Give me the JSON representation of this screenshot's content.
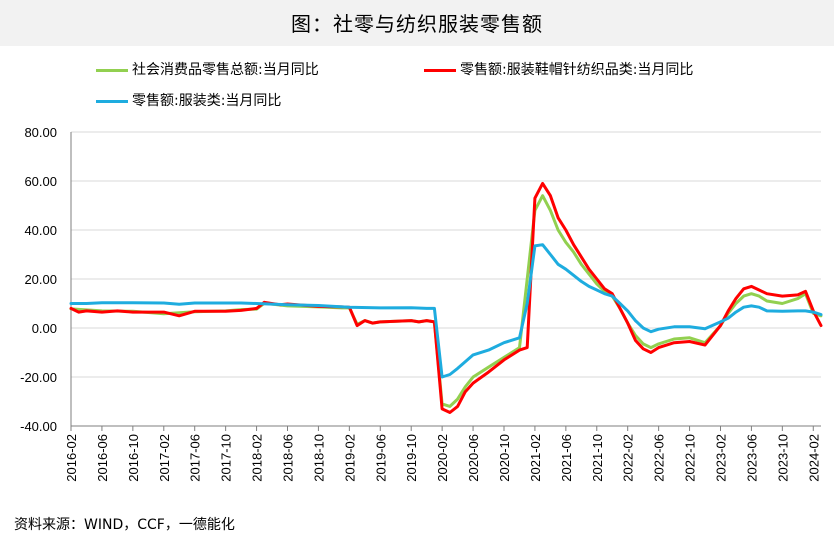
{
  "chart_data": {
    "type": "line",
    "title": "图：社零与纺织服装零售额",
    "ylim": [
      -40,
      80
    ],
    "y_ticks": [
      "80.00",
      "60.00",
      "40.00",
      "20.00",
      "0.00",
      "-20.00",
      "-40.00"
    ],
    "x_ticks": [
      "2016-02",
      "2016-06",
      "2016-10",
      "2017-02",
      "2017-06",
      "2017-10",
      "2018-02",
      "2018-06",
      "2018-10",
      "2019-02",
      "2019-06",
      "2019-10",
      "2020-02",
      "2020-06",
      "2020-10",
      "2021-02",
      "2021-06",
      "2021-10",
      "2022-02",
      "2022-06",
      "2022-10",
      "2023-02",
      "2023-06",
      "2023-10",
      "2024-02"
    ],
    "grid": true,
    "legend_position": "top",
    "series": [
      {
        "name": "社会消费品零售总额:当月同比",
        "color": "#92d050",
        "values": [
          {
            "x": "2016-02",
            "y": 7.8
          },
          {
            "x": "2016-06",
            "y": 7.0
          },
          {
            "x": "2016-10",
            "y": 6.8
          },
          {
            "x": "2017-02",
            "y": 5.8
          },
          {
            "x": "2017-06",
            "y": 6.6
          },
          {
            "x": "2017-10",
            "y": 7.0
          },
          {
            "x": "2017-12",
            "y": 7.5
          },
          {
            "x": "2018-02",
            "y": 7.7
          },
          {
            "x": "2018-03",
            "y": 10.1
          },
          {
            "x": "2018-06",
            "y": 9.0
          },
          {
            "x": "2018-10",
            "y": 8.6
          },
          {
            "x": "2019-01",
            "y": 8.2
          },
          {
            "x": "2019-02",
            "y": 8.2
          },
          {
            "x": "2019-03",
            "y": 1.5
          },
          {
            "x": "2019-04",
            "y": 3.0
          },
          {
            "x": "2019-05",
            "y": 2.0
          },
          {
            "x": "2019-06",
            "y": 2.5
          },
          {
            "x": "2019-10",
            "y": 3.0
          },
          {
            "x": "2019-11",
            "y": 2.5
          },
          {
            "x": "2019-12",
            "y": 3.0
          },
          {
            "x": "2020-01",
            "y": 2.5
          },
          {
            "x": "2020-02",
            "y": -31
          },
          {
            "x": "2020-03",
            "y": -32
          },
          {
            "x": "2020-04",
            "y": -29
          },
          {
            "x": "2020-05",
            "y": -24
          },
          {
            "x": "2020-06",
            "y": -20
          },
          {
            "x": "2020-08",
            "y": -16
          },
          {
            "x": "2020-10",
            "y": -12
          },
          {
            "x": "2020-12",
            "y": -8
          },
          {
            "x": "2021-01",
            "y": 20
          },
          {
            "x": "2021-02",
            "y": 48
          },
          {
            "x": "2021-03",
            "y": 54
          },
          {
            "x": "2021-04",
            "y": 48
          },
          {
            "x": "2021-05",
            "y": 40
          },
          {
            "x": "2021-06",
            "y": 35
          },
          {
            "x": "2021-07",
            "y": 31
          },
          {
            "x": "2021-08",
            "y": 26
          },
          {
            "x": "2021-09",
            "y": 22
          },
          {
            "x": "2021-10",
            "y": 18
          },
          {
            "x": "2021-11",
            "y": 15
          },
          {
            "x": "2021-12",
            "y": 13
          },
          {
            "x": "2022-01",
            "y": 8
          },
          {
            "x": "2022-02",
            "y": 2
          },
          {
            "x": "2022-03",
            "y": -3
          },
          {
            "x": "2022-04",
            "y": -6.5
          },
          {
            "x": "2022-05",
            "y": -8
          },
          {
            "x": "2022-06",
            "y": -6.5
          },
          {
            "x": "2022-08",
            "y": -4.5
          },
          {
            "x": "2022-10",
            "y": -4
          },
          {
            "x": "2022-12",
            "y": -6
          },
          {
            "x": "2023-02",
            "y": 1
          },
          {
            "x": "2023-03",
            "y": 6
          },
          {
            "x": "2023-04",
            "y": 10
          },
          {
            "x": "2023-05",
            "y": 13
          },
          {
            "x": "2023-06",
            "y": 14
          },
          {
            "x": "2023-07",
            "y": 13
          },
          {
            "x": "2023-08",
            "y": 11
          },
          {
            "x": "2023-10",
            "y": 10
          },
          {
            "x": "2023-12",
            "y": 12
          },
          {
            "x": "2024-01",
            "y": 14
          },
          {
            "x": "2024-02",
            "y": 6
          },
          {
            "x": "2024-03",
            "y": 5
          }
        ]
      },
      {
        "name": "零售额:服装鞋帽针纺织品类:当月同比",
        "color": "#ff0000",
        "values": [
          {
            "x": "2016-02",
            "y": 8.0
          },
          {
            "x": "2016-03",
            "y": 6.5
          },
          {
            "x": "2016-04",
            "y": 7.0
          },
          {
            "x": "2016-06",
            "y": 6.5
          },
          {
            "x": "2016-08",
            "y": 7.0
          },
          {
            "x": "2016-10",
            "y": 6.5
          },
          {
            "x": "2017-02",
            "y": 6.5
          },
          {
            "x": "2017-04",
            "y": 5.0
          },
          {
            "x": "2017-06",
            "y": 6.8
          },
          {
            "x": "2017-10",
            "y": 6.8
          },
          {
            "x": "2017-12",
            "y": 7.2
          },
          {
            "x": "2018-02",
            "y": 8.0
          },
          {
            "x": "2018-03",
            "y": 10.5
          },
          {
            "x": "2018-05",
            "y": 9.5
          },
          {
            "x": "2018-06",
            "y": 9.8
          },
          {
            "x": "2018-10",
            "y": 8.8
          },
          {
            "x": "2019-01",
            "y": 8.6
          },
          {
            "x": "2019-02",
            "y": 8.5
          },
          {
            "x": "2019-03",
            "y": 1.0
          },
          {
            "x": "2019-04",
            "y": 3.0
          },
          {
            "x": "2019-05",
            "y": 2.0
          },
          {
            "x": "2019-06",
            "y": 2.5
          },
          {
            "x": "2019-10",
            "y": 3.0
          },
          {
            "x": "2019-11",
            "y": 2.5
          },
          {
            "x": "2019-12",
            "y": 3.0
          },
          {
            "x": "2020-01",
            "y": 2.5
          },
          {
            "x": "2020-02",
            "y": -33
          },
          {
            "x": "2020-03",
            "y": -34.5
          },
          {
            "x": "2020-04",
            "y": -32
          },
          {
            "x": "2020-05",
            "y": -26
          },
          {
            "x": "2020-06",
            "y": -22.5
          },
          {
            "x": "2020-08",
            "y": -18
          },
          {
            "x": "2020-10",
            "y": -13
          },
          {
            "x": "2020-12",
            "y": -9
          },
          {
            "x": "2021-01",
            "y": -8
          },
          {
            "x": "2021-02",
            "y": 53
          },
          {
            "x": "2021-03",
            "y": 59
          },
          {
            "x": "2021-04",
            "y": 54
          },
          {
            "x": "2021-05",
            "y": 45
          },
          {
            "x": "2021-06",
            "y": 40
          },
          {
            "x": "2021-07",
            "y": 34
          },
          {
            "x": "2021-08",
            "y": 29
          },
          {
            "x": "2021-09",
            "y": 24
          },
          {
            "x": "2021-10",
            "y": 20
          },
          {
            "x": "2021-11",
            "y": 16
          },
          {
            "x": "2021-12",
            "y": 14
          },
          {
            "x": "2022-01",
            "y": 8
          },
          {
            "x": "2022-02",
            "y": 2
          },
          {
            "x": "2022-03",
            "y": -5
          },
          {
            "x": "2022-04",
            "y": -8.5
          },
          {
            "x": "2022-05",
            "y": -10
          },
          {
            "x": "2022-06",
            "y": -8
          },
          {
            "x": "2022-08",
            "y": -6
          },
          {
            "x": "2022-10",
            "y": -5.5
          },
          {
            "x": "2022-12",
            "y": -7
          },
          {
            "x": "2023-02",
            "y": 1
          },
          {
            "x": "2023-03",
            "y": 7
          },
          {
            "x": "2023-04",
            "y": 12
          },
          {
            "x": "2023-05",
            "y": 16
          },
          {
            "x": "2023-06",
            "y": 17
          },
          {
            "x": "2023-07",
            "y": 15.5
          },
          {
            "x": "2023-08",
            "y": 14
          },
          {
            "x": "2023-10",
            "y": 13
          },
          {
            "x": "2023-12",
            "y": 13.5
          },
          {
            "x": "2024-01",
            "y": 15
          },
          {
            "x": "2024-02",
            "y": 7
          },
          {
            "x": "2024-03",
            "y": 1
          }
        ]
      },
      {
        "name": "零售额:服装类:当月同比",
        "color": "#1eacdf",
        "values": [
          {
            "x": "2016-02",
            "y": 10.0
          },
          {
            "x": "2016-04",
            "y": 10.0
          },
          {
            "x": "2016-06",
            "y": 10.3
          },
          {
            "x": "2016-10",
            "y": 10.3
          },
          {
            "x": "2017-02",
            "y": 10.2
          },
          {
            "x": "2017-04",
            "y": 9.7
          },
          {
            "x": "2017-06",
            "y": 10.2
          },
          {
            "x": "2017-10",
            "y": 10.2
          },
          {
            "x": "2017-12",
            "y": 10.2
          },
          {
            "x": "2018-02",
            "y": 10.0
          },
          {
            "x": "2018-06",
            "y": 9.5
          },
          {
            "x": "2018-10",
            "y": 9.2
          },
          {
            "x": "2019-02",
            "y": 8.5
          },
          {
            "x": "2019-06",
            "y": 8.2
          },
          {
            "x": "2019-10",
            "y": 8.3
          },
          {
            "x": "2019-12",
            "y": 8.0
          },
          {
            "x": "2020-01",
            "y": 8.0
          },
          {
            "x": "2020-02",
            "y": -20
          },
          {
            "x": "2020-03",
            "y": -19
          },
          {
            "x": "2020-04",
            "y": -16.5
          },
          {
            "x": "2020-06",
            "y": -11
          },
          {
            "x": "2020-08",
            "y": -9
          },
          {
            "x": "2020-10",
            "y": -6
          },
          {
            "x": "2020-12",
            "y": -4
          },
          {
            "x": "2021-01",
            "y": 10
          },
          {
            "x": "2021-02",
            "y": 33.5
          },
          {
            "x": "2021-03",
            "y": 34
          },
          {
            "x": "2021-04",
            "y": 30
          },
          {
            "x": "2021-05",
            "y": 26
          },
          {
            "x": "2021-06",
            "y": 24
          },
          {
            "x": "2021-07",
            "y": 21.5
          },
          {
            "x": "2021-08",
            "y": 19
          },
          {
            "x": "2021-09",
            "y": 17
          },
          {
            "x": "2021-10",
            "y": 15.5
          },
          {
            "x": "2021-11",
            "y": 14
          },
          {
            "x": "2021-12",
            "y": 13
          },
          {
            "x": "2022-01",
            "y": 10
          },
          {
            "x": "2022-02",
            "y": 7
          },
          {
            "x": "2022-03",
            "y": 3
          },
          {
            "x": "2022-04",
            "y": 0
          },
          {
            "x": "2022-05",
            "y": -1.5
          },
          {
            "x": "2022-06",
            "y": -0.5
          },
          {
            "x": "2022-08",
            "y": 0.5
          },
          {
            "x": "2022-10",
            "y": 0.5
          },
          {
            "x": "2022-12",
            "y": -0.3
          },
          {
            "x": "2023-02",
            "y": 2.5
          },
          {
            "x": "2023-03",
            "y": 4
          },
          {
            "x": "2023-04",
            "y": 6.5
          },
          {
            "x": "2023-05",
            "y": 8.5
          },
          {
            "x": "2023-06",
            "y": 9.0
          },
          {
            "x": "2023-07",
            "y": 8.5
          },
          {
            "x": "2023-08",
            "y": 7.0
          },
          {
            "x": "2023-10",
            "y": 6.8
          },
          {
            "x": "2023-12",
            "y": 7.0
          },
          {
            "x": "2024-01",
            "y": 7.0
          },
          {
            "x": "2024-02",
            "y": 6.5
          },
          {
            "x": "2024-03",
            "y": 5.5
          }
        ]
      }
    ]
  },
  "source_text": "资料来源：WIND，CCF，一德能化"
}
